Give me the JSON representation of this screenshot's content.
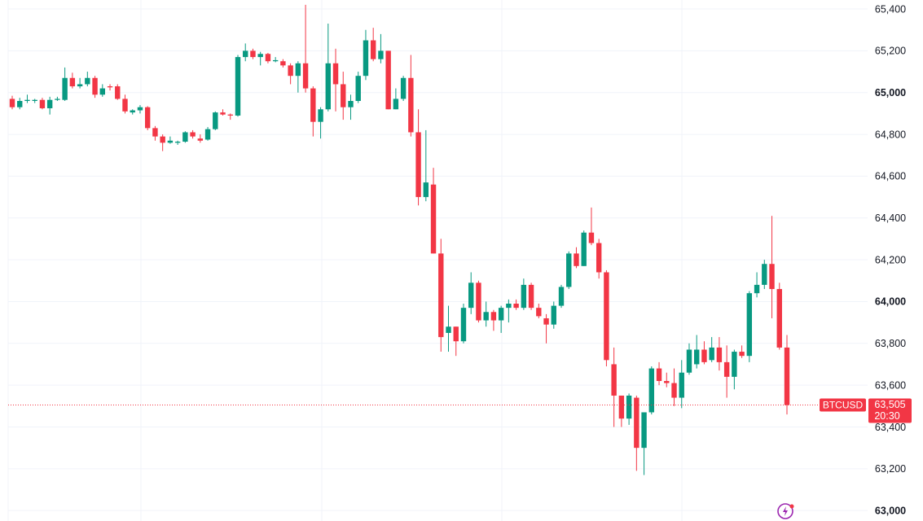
{
  "chart_data": {
    "type": "candlestick",
    "symbol": "BTCUSD",
    "last_price": {
      "value": 63505,
      "label": "63,505"
    },
    "countdown": "20:30",
    "up_color": "#089981",
    "down_color": "#f23645",
    "grid": true,
    "ylim": [
      62950,
      65443
    ],
    "yticks": [
      {
        "value": 63000,
        "label": "63,000"
      },
      {
        "value": 63200,
        "label": "63,200"
      },
      {
        "value": 63400,
        "label": "63,400"
      },
      {
        "value": 63600,
        "label": "63,600"
      },
      {
        "value": 63800,
        "label": "63,800"
      },
      {
        "value": 64000,
        "label": "64,000"
      },
      {
        "value": 64200,
        "label": "64,200"
      },
      {
        "value": 64400,
        "label": "64,400"
      },
      {
        "value": 64600,
        "label": "64,600"
      },
      {
        "value": 64800,
        "label": "64,800"
      },
      {
        "value": 65000,
        "label": "65,000"
      },
      {
        "value": 65200,
        "label": "65,200"
      },
      {
        "value": 65400,
        "label": "65,400"
      }
    ],
    "open": [
      64970,
      64930,
      64960,
      64960,
      64965,
      64925,
      64965,
      64965,
      65070,
      65030,
      65040,
      65070,
      64990,
      65030,
      65030,
      64970,
      64905,
      64915,
      64930,
      64830,
      64790,
      64760,
      64760,
      64765,
      64810,
      64780,
      64775,
      64825,
      64905,
      64895,
      64890,
      65170,
      65200,
      65170,
      65185,
      65150,
      65150,
      65130,
      65080,
      65140,
      65020,
      64860,
      64920,
      65140,
      65040,
      64930,
      64960,
      65080,
      65250,
      65160,
      65200,
      64920,
      64970,
      65070,
      64810,
      64500,
      64560,
      64230,
      63850,
      63880,
      63810,
      63970,
      64090,
      63910,
      63950,
      63910,
      63970,
      63990,
      63970,
      64080,
      63970,
      63920,
      63890,
      63980,
      64070,
      64230,
      64170,
      64330,
      64280,
      64140,
      63700,
      63550,
      63440,
      63540,
      63300,
      63470,
      63680,
      63620,
      63610,
      63540,
      63660,
      63700,
      63770,
      63720,
      63780,
      63710,
      63640,
      63760,
      63740,
      64040,
      64080,
      64180,
      64060,
      63780
    ],
    "high": [
      64985,
      64975,
      64990,
      64970,
      64975,
      64980,
      64980,
      65120,
      65095,
      65070,
      65100,
      65080,
      65040,
      65040,
      65040,
      64990,
      64920,
      64940,
      64935,
      64840,
      64800,
      64790,
      64770,
      64815,
      64820,
      64800,
      64835,
      64910,
      64920,
      64900,
      65180,
      65235,
      65210,
      65195,
      65190,
      65170,
      65160,
      65140,
      65150,
      65420,
      65030,
      64930,
      65330,
      65210,
      65100,
      64990,
      65100,
      65300,
      65310,
      65280,
      65200,
      65020,
      65080,
      65180,
      64920,
      64820,
      64640,
      64300,
      63980,
      63880,
      63990,
      64140,
      64100,
      64000,
      63960,
      63980,
      64010,
      64010,
      64110,
      64090,
      63990,
      63940,
      64000,
      64080,
      64240,
      64260,
      64340,
      64450,
      64300,
      64150,
      63780,
      63550,
      63560,
      63550,
      63470,
      63690,
      63710,
      63660,
      63680,
      63720,
      63800,
      63840,
      63810,
      63830,
      63830,
      63790,
      63770,
      63790,
      64050,
      64140,
      64200,
      64410,
      64090,
      63840
    ],
    "low": [
      64920,
      64920,
      64950,
      64950,
      64920,
      64895,
      64960,
      64960,
      65020,
      65020,
      65030,
      64975,
      64980,
      65010,
      64965,
      64900,
      64895,
      64900,
      64820,
      64770,
      64720,
      64755,
      64750,
      64760,
      64780,
      64760,
      64770,
      64820,
      64890,
      64870,
      64885,
      65150,
      65160,
      65130,
      65140,
      65145,
      65120,
      65040,
      65000,
      65000,
      64790,
      64780,
      64910,
      64910,
      64870,
      64870,
      64950,
      65060,
      65150,
      65140,
      64920,
      64920,
      64960,
      64790,
      64460,
      64480,
      64230,
      63760,
      63760,
      63740,
      63800,
      63940,
      63900,
      63880,
      63860,
      63850,
      63900,
      63960,
      63960,
      63960,
      63920,
      63800,
      63870,
      63970,
      64060,
      64160,
      64170,
      64270,
      64110,
      63690,
      63400,
      63400,
      63410,
      63190,
      63170,
      63460,
      63600,
      63590,
      63500,
      63490,
      63650,
      63680,
      63700,
      63710,
      63670,
      63540,
      63580,
      63730,
      63710,
      64020,
      64060,
      63920,
      63770,
      63460
    ],
    "close": [
      64930,
      64960,
      64965,
      64965,
      64925,
      64965,
      64970,
      65070,
      65030,
      65040,
      65070,
      64990,
      65020,
      65025,
      64970,
      64910,
      64915,
      64930,
      64830,
      64790,
      64760,
      64770,
      64765,
      64810,
      64790,
      64770,
      64825,
      64905,
      64895,
      64890,
      65170,
      65200,
      65170,
      65185,
      65150,
      65155,
      65130,
      65080,
      65140,
      65020,
      64860,
      64920,
      65140,
      65040,
      64930,
      64960,
      65080,
      65250,
      65160,
      65200,
      64920,
      64970,
      65070,
      64810,
      64500,
      64570,
      64230,
      63830,
      63880,
      63810,
      63970,
      64090,
      63910,
      63950,
      63910,
      63970,
      63990,
      63970,
      64080,
      63970,
      63930,
      63890,
      63980,
      64070,
      64230,
      64170,
      64330,
      64280,
      64140,
      63720,
      63550,
      63440,
      63550,
      63300,
      63470,
      63680,
      63620,
      63610,
      63540,
      63660,
      63770,
      63770,
      63710,
      63780,
      63710,
      63640,
      63760,
      63740,
      64040,
      64080,
      64180,
      64060,
      63780,
      63505
    ]
  }
}
